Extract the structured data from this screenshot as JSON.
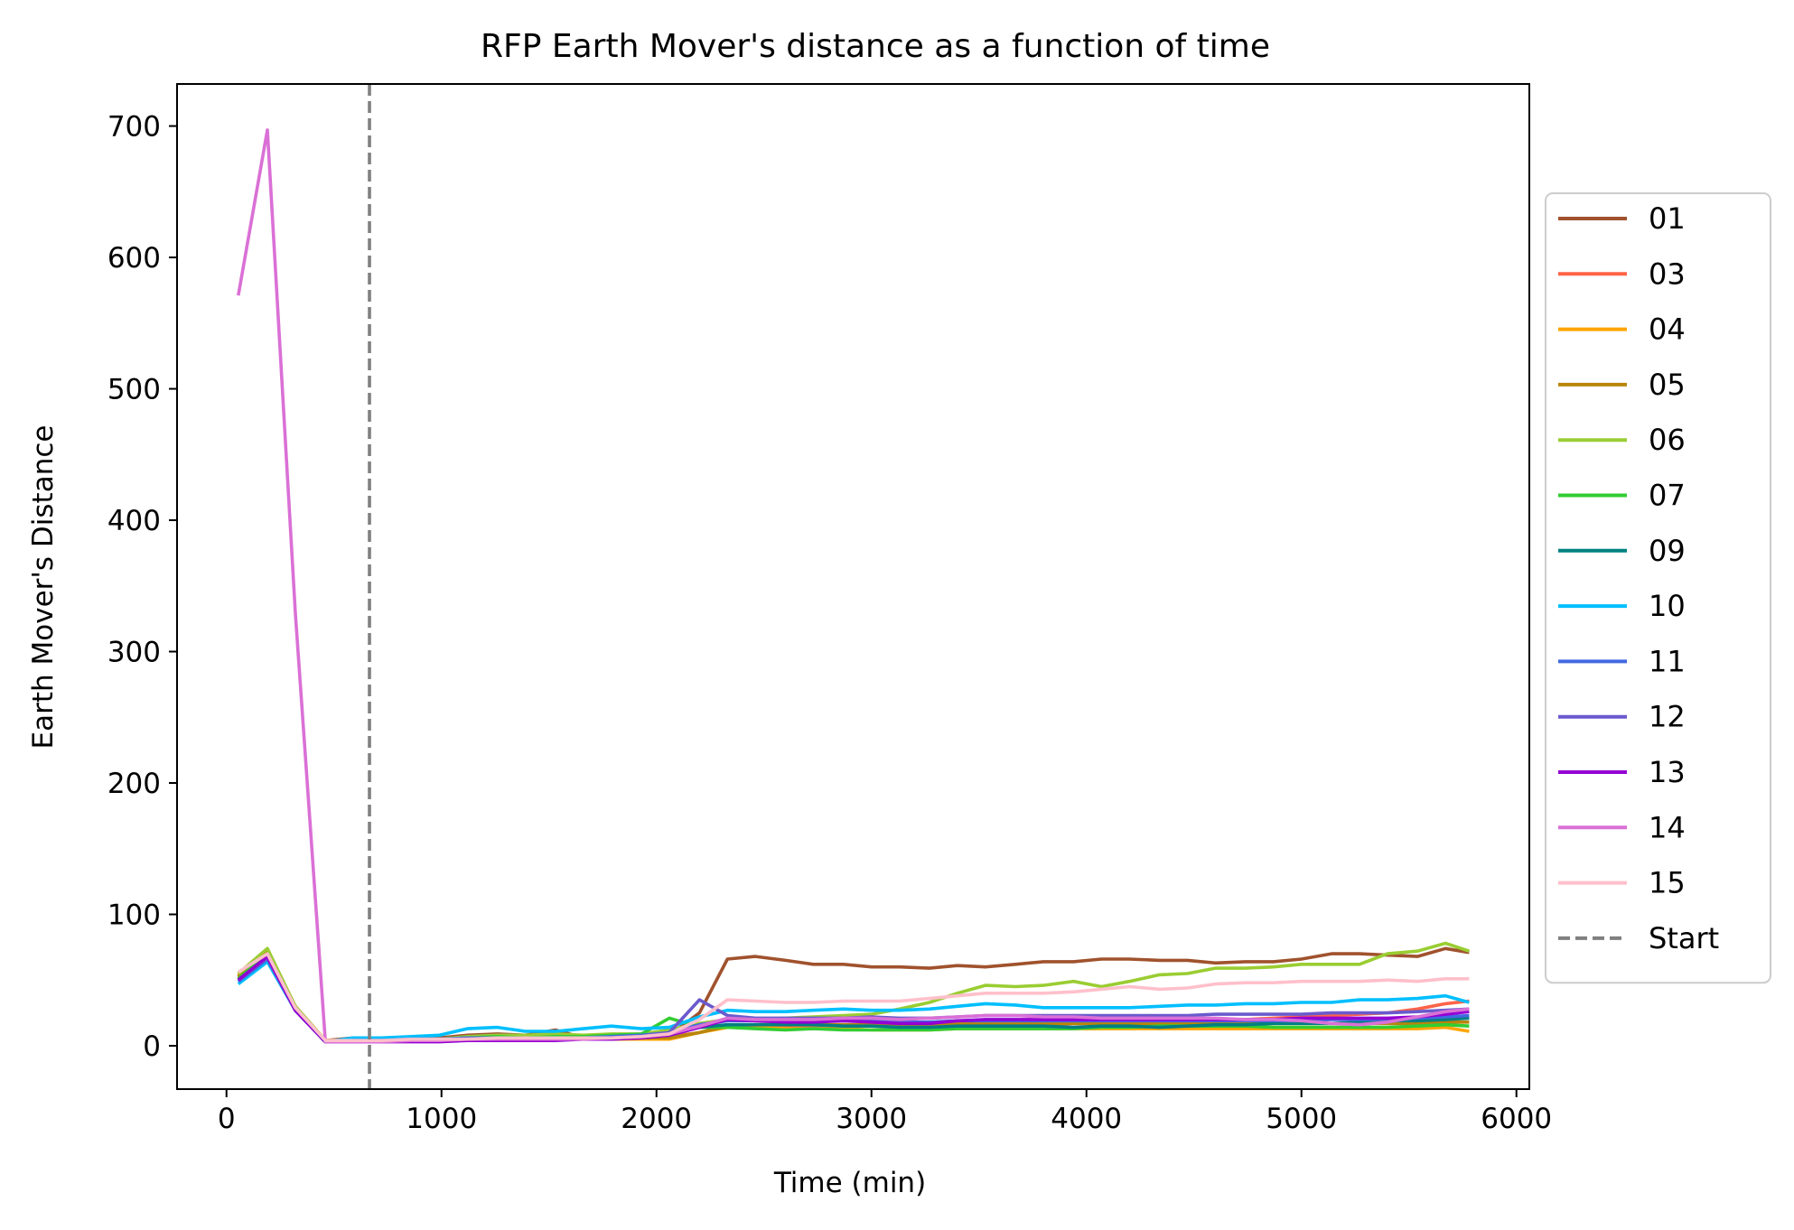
{
  "chart_data": {
    "type": "line",
    "title": "RFP Earth Mover's distance as a function of time",
    "xlabel": "Time (min)",
    "ylabel": "Earth Mover's Distance",
    "xlim": [
      -230,
      6060
    ],
    "ylim": [
      -33,
      732
    ],
    "xticks": [
      0,
      1000,
      2000,
      3000,
      4000,
      5000,
      6000
    ],
    "yticks": [
      0,
      100,
      200,
      300,
      400,
      500,
      600,
      700
    ],
    "xtick_labels": [
      "0",
      "1000",
      "2000",
      "3000",
      "4000",
      "5000",
      "6000"
    ],
    "ytick_labels": [
      "0",
      "100",
      "200",
      "300",
      "400",
      "500",
      "600",
      "700"
    ],
    "grid": false,
    "legend_position": "center-right outside",
    "x": [
      55,
      190,
      320,
      460,
      590,
      720,
      860,
      990,
      1120,
      1260,
      1390,
      1530,
      1660,
      1790,
      1930,
      2060,
      2200,
      2330,
      2460,
      2600,
      2730,
      2870,
      3000,
      3130,
      3270,
      3400,
      3530,
      3670,
      3800,
      3940,
      4070,
      4200,
      4340,
      4470,
      4600,
      4740,
      4870,
      5000,
      5140,
      5270,
      5400,
      5540,
      5670,
      5780
    ],
    "series": [
      {
        "name": "01",
        "color": "#a0522d",
        "values": [
          52,
          70,
          28,
          4,
          6,
          5,
          6,
          6,
          8,
          9,
          8,
          12,
          6,
          8,
          7,
          8,
          25,
          66,
          68,
          65,
          62,
          62,
          60,
          60,
          59,
          61,
          60,
          62,
          64,
          64,
          66,
          66,
          65,
          65,
          63,
          64,
          64,
          66,
          70,
          70,
          69,
          68,
          74,
          71
        ]
      },
      {
        "name": "03",
        "color": "#ff6347",
        "values": [
          50,
          68,
          27,
          3,
          4,
          4,
          5,
          5,
          5,
          6,
          6,
          8,
          6,
          6,
          7,
          7,
          10,
          15,
          15,
          15,
          15,
          15,
          15,
          15,
          15,
          15,
          16,
          16,
          16,
          17,
          17,
          17,
          18,
          18,
          19,
          20,
          21,
          22,
          23,
          24,
          25,
          28,
          32,
          34
        ]
      },
      {
        "name": "04",
        "color": "#ffa500",
        "values": [
          54,
          72,
          30,
          4,
          4,
          4,
          4,
          4,
          4,
          5,
          5,
          5,
          5,
          5,
          5,
          5,
          10,
          14,
          14,
          13,
          13,
          13,
          12,
          12,
          12,
          13,
          13,
          13,
          13,
          13,
          13,
          13,
          13,
          13,
          13,
          13,
          13,
          13,
          13,
          13,
          13,
          13,
          14,
          11
        ]
      },
      {
        "name": "05",
        "color": "#b8860b",
        "values": [
          53,
          73,
          30,
          4,
          4,
          4,
          5,
          5,
          5,
          5,
          6,
          6,
          6,
          6,
          6,
          6,
          10,
          15,
          16,
          16,
          16,
          16,
          16,
          16,
          16,
          17,
          17,
          17,
          17,
          17,
          17,
          17,
          17,
          17,
          17,
          17,
          17,
          17,
          17,
          17,
          17,
          17,
          18,
          18
        ]
      },
      {
        "name": "06",
        "color": "#9acd32",
        "values": [
          55,
          74,
          30,
          4,
          4,
          4,
          5,
          5,
          7,
          8,
          8,
          9,
          8,
          9,
          9,
          12,
          17,
          20,
          20,
          21,
          22,
          23,
          24,
          28,
          33,
          40,
          46,
          45,
          46,
          49,
          45,
          49,
          54,
          55,
          59,
          59,
          60,
          62,
          62,
          62,
          70,
          72,
          78,
          72
        ]
      },
      {
        "name": "07",
        "color": "#32cd32",
        "values": [
          51,
          70,
          28,
          3,
          4,
          4,
          5,
          5,
          6,
          7,
          6,
          7,
          7,
          8,
          9,
          21,
          14,
          14,
          13,
          12,
          13,
          12,
          12,
          12,
          12,
          13,
          13,
          13,
          13,
          13,
          14,
          14,
          15,
          15,
          15,
          15,
          14,
          14,
          14,
          14,
          14,
          15,
          16,
          15
        ]
      },
      {
        "name": "09",
        "color": "#008080",
        "values": [
          50,
          68,
          27,
          3,
          4,
          4,
          5,
          5,
          5,
          6,
          6,
          6,
          6,
          6,
          7,
          8,
          14,
          16,
          16,
          16,
          16,
          15,
          15,
          14,
          14,
          15,
          15,
          15,
          15,
          14,
          15,
          15,
          14,
          15,
          16,
          16,
          17,
          17,
          17,
          18,
          19,
          19,
          20,
          21
        ]
      },
      {
        "name": "10",
        "color": "#00bfff",
        "values": [
          47,
          64,
          27,
          3,
          6,
          6,
          7,
          8,
          13,
          14,
          11,
          11,
          13,
          15,
          13,
          14,
          22,
          27,
          26,
          26,
          27,
          28,
          27,
          27,
          28,
          30,
          32,
          31,
          29,
          29,
          29,
          29,
          30,
          31,
          31,
          32,
          32,
          33,
          33,
          35,
          35,
          36,
          38,
          33
        ]
      },
      {
        "name": "11",
        "color": "#4169e1",
        "values": [
          49,
          66,
          27,
          3,
          4,
          4,
          5,
          5,
          6,
          6,
          6,
          6,
          6,
          7,
          8,
          10,
          16,
          19,
          19,
          19,
          19,
          19,
          19,
          18,
          18,
          19,
          19,
          19,
          19,
          19,
          19,
          19,
          19,
          19,
          19,
          19,
          19,
          19,
          20,
          20,
          20,
          21,
          22,
          23
        ]
      },
      {
        "name": "12",
        "color": "#6a5acd",
        "values": [
          50,
          67,
          27,
          3,
          4,
          4,
          5,
          5,
          5,
          6,
          6,
          6,
          6,
          6,
          7,
          10,
          35,
          23,
          21,
          21,
          21,
          21,
          22,
          21,
          21,
          22,
          23,
          23,
          23,
          23,
          23,
          23,
          23,
          23,
          24,
          24,
          24,
          24,
          25,
          25,
          25,
          26,
          27,
          28
        ]
      },
      {
        "name": "13",
        "color": "#9400d3",
        "values": [
          50,
          68,
          27,
          3,
          3,
          3,
          3,
          3,
          4,
          4,
          4,
          4,
          5,
          5,
          6,
          8,
          14,
          20,
          19,
          18,
          18,
          19,
          18,
          17,
          17,
          19,
          20,
          20,
          20,
          20,
          20,
          20,
          20,
          20,
          20,
          20,
          20,
          21,
          21,
          21,
          21,
          22,
          24,
          26
        ]
      },
      {
        "name": "14",
        "color": "#da70d6",
        "values": [
          571,
          697,
          330,
          3,
          3,
          3,
          4,
          4,
          5,
          5,
          5,
          5,
          5,
          6,
          7,
          9,
          15,
          21,
          20,
          20,
          20,
          21,
          21,
          20,
          21,
          22,
          23,
          23,
          22,
          22,
          21,
          21,
          21,
          21,
          21,
          20,
          20,
          19,
          17,
          16,
          18,
          22,
          26,
          28
        ]
      },
      {
        "name": "15",
        "color": "#ffc0cb",
        "values": [
          56,
          70,
          29,
          4,
          4,
          4,
          5,
          5,
          5,
          6,
          6,
          6,
          6,
          6,
          7,
          9,
          20,
          35,
          34,
          33,
          33,
          34,
          34,
          34,
          36,
          38,
          40,
          40,
          40,
          41,
          43,
          45,
          43,
          44,
          47,
          48,
          48,
          49,
          49,
          49,
          50,
          49,
          51,
          51
        ]
      }
    ],
    "annotations": [
      {
        "type": "vline",
        "x": 665,
        "style": "dashed",
        "color": "#808080",
        "label": "Start"
      }
    ]
  }
}
